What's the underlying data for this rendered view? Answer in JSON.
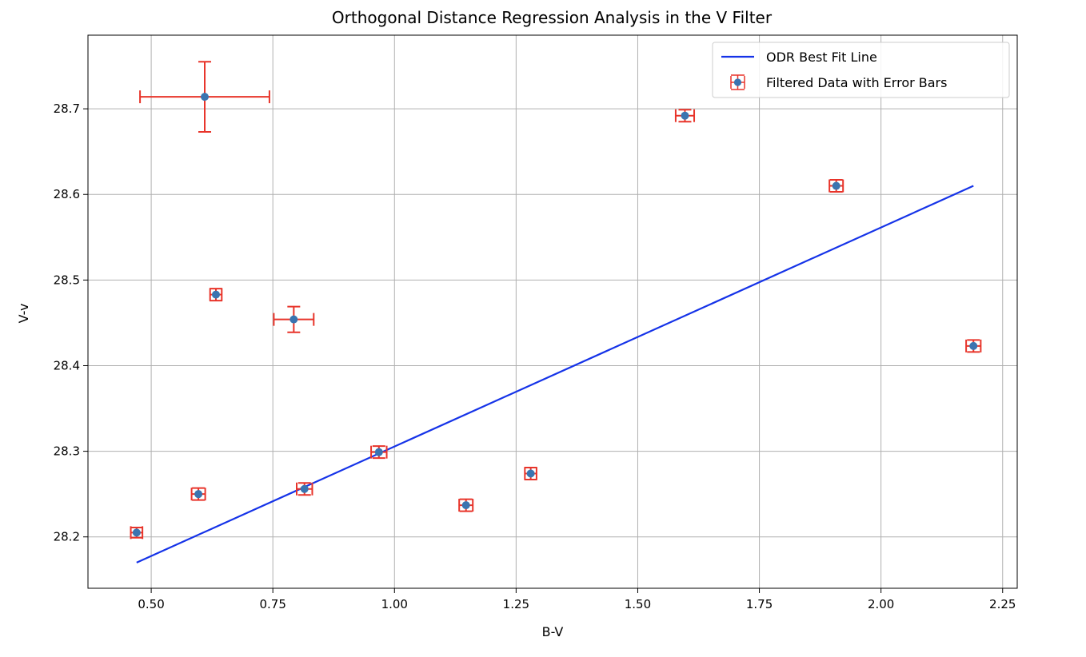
{
  "chart_data": {
    "type": "scatter",
    "title": "Orthogonal Distance Regression Analysis in the V Filter",
    "xlabel": "B-V",
    "ylabel": "V-v",
    "xlim": [
      0.37,
      2.28
    ],
    "ylim": [
      28.14,
      28.786
    ],
    "xticks": [
      "0.50",
      "0.75",
      "1.00",
      "1.25",
      "1.50",
      "1.75",
      "2.00",
      "2.25"
    ],
    "yticks": [
      "28.2",
      "28.3",
      "28.4",
      "28.5",
      "28.6",
      "28.7"
    ],
    "grid": true,
    "legend_position": "upper-right",
    "colors": {
      "line": "#1533e8",
      "points": "#3a74b0",
      "errorbars": "#e8342a",
      "grid": "#b0b0b0",
      "axes": "#000000"
    },
    "series": [
      {
        "name": "ODR Best Fit Line",
        "type": "line",
        "x": [
          0.47,
          2.19
        ],
        "y": [
          28.17,
          28.61
        ]
      },
      {
        "name": "Filtered Data with Error Bars",
        "type": "scatter_errorbar",
        "points": [
          {
            "x": 0.47,
            "y": 28.205,
            "xerr": 0.012,
            "yerr": 0.006
          },
          {
            "x": 0.597,
            "y": 28.25,
            "xerr": 0.014,
            "yerr": 0.007
          },
          {
            "x": 0.61,
            "y": 28.714,
            "xerr": 0.133,
            "yerr": 0.041
          },
          {
            "x": 0.633,
            "y": 28.483,
            "xerr": 0.012,
            "yerr": 0.007
          },
          {
            "x": 0.793,
            "y": 28.454,
            "xerr": 0.041,
            "yerr": 0.015
          },
          {
            "x": 0.815,
            "y": 28.256,
            "xerr": 0.016,
            "yerr": 0.007
          },
          {
            "x": 0.968,
            "y": 28.299,
            "xerr": 0.016,
            "yerr": 0.007
          },
          {
            "x": 1.147,
            "y": 28.237,
            "xerr": 0.014,
            "yerr": 0.007
          },
          {
            "x": 1.28,
            "y": 28.274,
            "xerr": 0.012,
            "yerr": 0.007
          },
          {
            "x": 1.597,
            "y": 28.692,
            "xerr": 0.019,
            "yerr": 0.007
          },
          {
            "x": 1.908,
            "y": 28.61,
            "xerr": 0.014,
            "yerr": 0.007
          },
          {
            "x": 2.19,
            "y": 28.423,
            "xerr": 0.015,
            "yerr": 0.007
          }
        ]
      }
    ]
  }
}
